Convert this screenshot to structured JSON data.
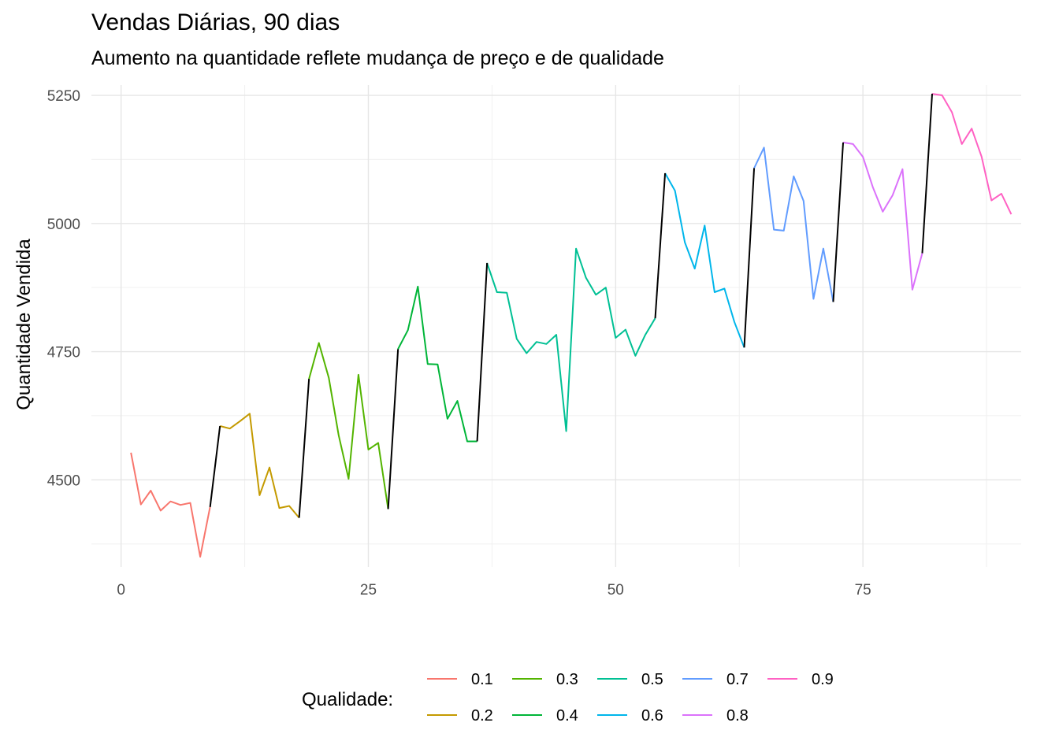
{
  "chart_data": {
    "type": "line",
    "title": "Vendas Diárias, 90 dias",
    "subtitle": "Aumento na quantidade reflete mudança de preço e de qualidade",
    "xlabel": "",
    "ylabel": "Quantidade Vendida",
    "xlim": [
      -3,
      91
    ],
    "ylim": [
      4330,
      5270
    ],
    "x_ticks": [
      0,
      25,
      50,
      75
    ],
    "y_ticks": [
      4500,
      4750,
      5000,
      5250
    ],
    "x_tick_labels": [
      "0",
      "25",
      "50",
      "75"
    ],
    "y_tick_labels": [
      "4500",
      "4750",
      "5000",
      "5250"
    ],
    "grid": true,
    "legend": {
      "title": "Qualidade:",
      "position": "bottom",
      "entries": [
        "0.1",
        "0.2",
        "0.3",
        "0.4",
        "0.5",
        "0.6",
        "0.7",
        "0.8",
        "0.9"
      ]
    },
    "x": [
      1,
      2,
      3,
      4,
      5,
      6,
      7,
      8,
      9,
      10,
      11,
      12,
      13,
      14,
      15,
      16,
      17,
      18,
      19,
      20,
      21,
      22,
      23,
      24,
      25,
      26,
      27,
      28,
      29,
      30,
      31,
      32,
      33,
      34,
      35,
      36,
      37,
      38,
      39,
      40,
      41,
      42,
      43,
      44,
      45,
      46,
      47,
      48,
      49,
      50,
      51,
      52,
      53,
      54,
      55,
      56,
      57,
      58,
      59,
      60,
      61,
      62,
      63,
      64,
      65,
      66,
      67,
      68,
      69,
      70,
      71,
      72,
      73,
      74,
      75,
      76,
      77,
      78,
      79,
      80,
      81,
      82,
      83,
      84,
      85,
      86,
      87,
      88,
      89,
      90
    ],
    "y": [
      4553,
      4452,
      4479,
      4440,
      4458,
      4451,
      4455,
      4350,
      4447,
      4605,
      4600,
      4614,
      4629,
      4470,
      4524,
      4445,
      4449,
      4426,
      4697,
      4767,
      4699,
      4587,
      4502,
      4705,
      4559,
      4572,
      4443,
      4755,
      4792,
      4877,
      4726,
      4725,
      4619,
      4654,
      4575,
      4575,
      4923,
      4866,
      4865,
      4775,
      4747,
      4769,
      4765,
      4783,
      4595,
      4951,
      4894,
      4861,
      4875,
      4777,
      4793,
      4742,
      4783,
      4815,
      5098,
      5064,
      4963,
      4912,
      4996,
      4866,
      4873,
      4808,
      4758,
      5108,
      5148,
      4988,
      4986,
      5092,
      5044,
      4853,
      4951,
      4847,
      5158,
      5155,
      5130,
      5071,
      5023,
      5055,
      5106,
      4871,
      4942,
      5253,
      5250,
      5217,
      5155,
      5185,
      5130,
      5045,
      5058,
      5018
    ],
    "series": [
      {
        "name": "0.1",
        "color": "#F8766D",
        "x_range": [
          1,
          9
        ]
      },
      {
        "name": "0.2",
        "color": "#C49A00",
        "x_range": [
          10,
          18
        ]
      },
      {
        "name": "0.3",
        "color": "#53B400",
        "x_range": [
          19,
          27
        ]
      },
      {
        "name": "0.4",
        "color": "#00B538",
        "x_range": [
          28,
          36
        ]
      },
      {
        "name": "0.5",
        "color": "#00C094",
        "x_range": [
          37,
          54
        ]
      },
      {
        "name": "0.6",
        "color": "#00B6EB",
        "x_range": [
          55,
          63
        ]
      },
      {
        "name": "0.7",
        "color": "#619CFF",
        "x_range": [
          64,
          72
        ]
      },
      {
        "name": "0.8",
        "color": "#DB72FB",
        "x_range": [
          73,
          81
        ]
      },
      {
        "name": "0.9",
        "color": "#FF61C3",
        "x_range": [
          82,
          90
        ]
      }
    ],
    "transition_color": "#000000"
  }
}
